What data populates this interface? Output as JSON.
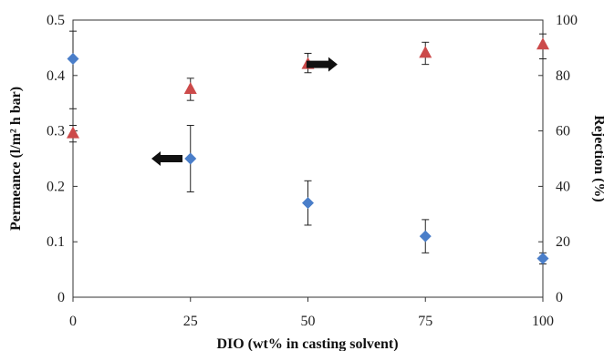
{
  "chart_data": {
    "type": "scatter",
    "xlabel": "DIO (wt% in casting solvent)",
    "ylabel": "Permeance (l/m² h bar)",
    "y2label": "Rejection (%)",
    "x": [
      0,
      25,
      50,
      75,
      100
    ],
    "xlim": [
      0,
      100
    ],
    "ylim": [
      0,
      0.5
    ],
    "y2lim": [
      0,
      100
    ],
    "xticks": [
      "0",
      "25",
      "50",
      "75",
      "100"
    ],
    "yticks": [
      "0",
      "0.1",
      "0.2",
      "0.3",
      "0.4",
      "0.5"
    ],
    "y2ticks": [
      "0",
      "20",
      "40",
      "60",
      "80",
      "100"
    ],
    "grid": false,
    "series": [
      {
        "axis": "left",
        "marker": "diamond",
        "color": "#4a7ec9",
        "values": [
          0.43,
          0.25,
          0.17,
          0.11,
          0.07
        ],
        "error_low": [
          0.34,
          0.19,
          0.13,
          0.08,
          0.06
        ],
        "error_high": [
          0.48,
          0.31,
          0.21,
          0.14,
          0.08
        ]
      },
      {
        "axis": "right",
        "marker": "triangle",
        "color": "#cc4a4a",
        "values": [
          59,
          75,
          84,
          88,
          91
        ],
        "error_low": [
          56,
          71,
          81,
          84,
          86
        ],
        "error_high": [
          62,
          79,
          88,
          92,
          95
        ]
      }
    ],
    "annotations": [
      {
        "type": "arrow",
        "direction": "left",
        "x": 20,
        "y": 0.25
      },
      {
        "type": "arrow",
        "direction": "right",
        "x": 53,
        "y": 0.42
      }
    ]
  }
}
